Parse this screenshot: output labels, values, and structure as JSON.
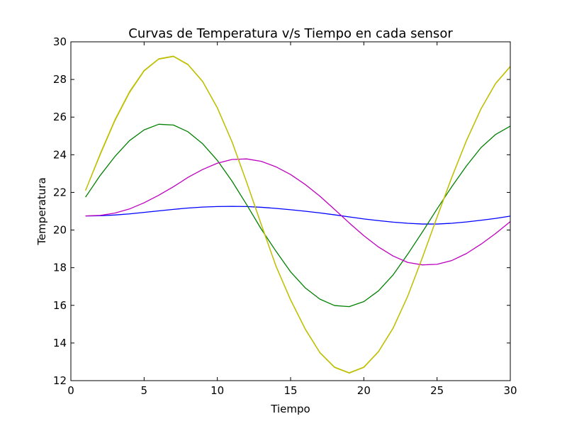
{
  "chart_data": {
    "type": "line",
    "title": "Curvas de Temperatura v/s Tiempo en cada sensor",
    "xlabel": "Tiempo",
    "ylabel": "Temperatura",
    "xlim": [
      0,
      30
    ],
    "ylim": [
      12,
      30
    ],
    "xticks": [
      0,
      5,
      10,
      15,
      20,
      25,
      30
    ],
    "yticks": [
      12,
      14,
      16,
      18,
      20,
      22,
      24,
      26,
      28,
      30
    ],
    "grid": false,
    "legend": "none",
    "x": [
      1,
      2,
      3,
      4,
      5,
      6,
      7,
      8,
      9,
      10,
      11,
      12,
      13,
      14,
      15,
      16,
      17,
      18,
      19,
      20,
      21,
      22,
      23,
      24,
      25,
      26,
      27,
      28,
      29,
      30
    ],
    "series": [
      {
        "color": "#0000ff",
        "values": [
          20.75,
          20.76,
          20.8,
          20.86,
          20.94,
          21.02,
          21.1,
          21.17,
          21.22,
          21.25,
          21.26,
          21.25,
          21.21,
          21.15,
          21.08,
          21.0,
          20.91,
          20.81,
          20.7,
          20.59,
          20.5,
          20.42,
          20.36,
          20.32,
          20.32,
          20.36,
          20.43,
          20.52,
          20.62,
          20.74
        ]
      },
      {
        "color": "#008000",
        "values": [
          21.75,
          22.9,
          23.9,
          24.75,
          25.32,
          25.62,
          25.58,
          25.22,
          24.58,
          23.7,
          22.6,
          21.35,
          20.05,
          18.88,
          17.78,
          16.93,
          16.33,
          15.99,
          15.93,
          16.2,
          16.77,
          17.62,
          18.72,
          19.9,
          21.12,
          22.3,
          23.4,
          24.38,
          25.08,
          25.52
        ]
      },
      {
        "color": "#bfbf00",
        "values": [
          22.1,
          24.05,
          25.85,
          27.35,
          28.48,
          29.1,
          29.24,
          28.8,
          27.9,
          26.5,
          24.7,
          22.55,
          20.3,
          18.1,
          16.3,
          14.75,
          13.5,
          12.72,
          12.42,
          12.72,
          13.55,
          14.8,
          16.5,
          18.55,
          20.7,
          22.8,
          24.75,
          26.45,
          27.8,
          28.7
        ]
      },
      {
        "color": "#bf00bf",
        "values": [
          20.75,
          20.78,
          20.9,
          21.12,
          21.45,
          21.85,
          22.3,
          22.8,
          23.22,
          23.55,
          23.75,
          23.78,
          23.65,
          23.36,
          22.95,
          22.42,
          21.8,
          21.1,
          20.38,
          19.7,
          19.1,
          18.62,
          18.28,
          18.15,
          18.18,
          18.38,
          18.75,
          19.25,
          19.82,
          20.45
        ]
      },
      {
        "color": "#bfbf00",
        "values": [
          22.1,
          24.0,
          25.8,
          27.3,
          28.45,
          29.08,
          29.22,
          28.78,
          27.88,
          26.48,
          24.68,
          22.53,
          20.28,
          18.08,
          16.28,
          14.73,
          13.48,
          12.7,
          12.4,
          12.7,
          13.53,
          14.78,
          16.48,
          18.53,
          20.68,
          22.78,
          24.73,
          26.43,
          27.78,
          28.68
        ]
      }
    ]
  }
}
